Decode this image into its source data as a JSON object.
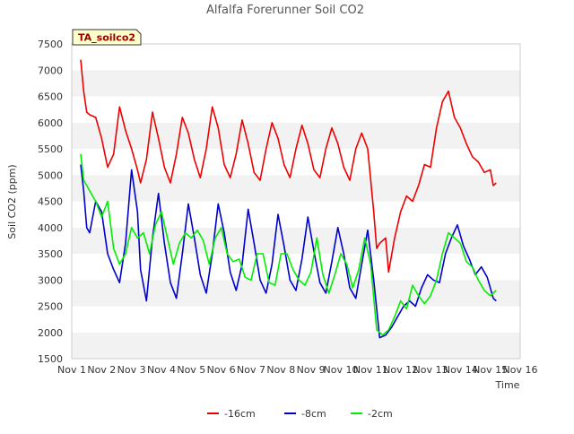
{
  "chart_data": {
    "type": "line",
    "title": "Alfalfa Forerunner Soil CO2",
    "xlabel": "Time",
    "ylabel": "Soil CO2 (ppm)",
    "xlim": [
      1,
      16
    ],
    "ylim": [
      1500,
      7500
    ],
    "x_ticks": [
      1,
      2,
      3,
      4,
      5,
      6,
      7,
      8,
      9,
      10,
      11,
      12,
      13,
      14,
      15,
      16
    ],
    "x_tick_labels": [
      "Nov 1",
      "Nov 2",
      "Nov 3",
      "Nov 4",
      "Nov 5",
      "Nov 6",
      "Nov 7",
      "Nov 8",
      "Nov 9",
      "Nov 10",
      "Nov 11",
      "Nov 12",
      "Nov 13",
      "Nov 14",
      "Nov 15",
      "Nov 16"
    ],
    "y_ticks": [
      1500,
      2000,
      2500,
      3000,
      3500,
      4000,
      4500,
      5000,
      5500,
      6000,
      6500,
      7000,
      7500
    ],
    "y_tick_labels": [
      "1500",
      "2000",
      "2500",
      "3000",
      "3500",
      "4000",
      "4500",
      "5000",
      "5500",
      "6000",
      "6500",
      "7000",
      "7500"
    ],
    "grid": "horizontal bands",
    "legend_position": "bottom-center",
    "site_label": "TA_soilco2",
    "series": [
      {
        "name": "-16cm",
        "color": "#ee0000",
        "x": [
          1.3,
          1.4,
          1.5,
          1.6,
          1.8,
          2.0,
          2.2,
          2.4,
          2.6,
          2.8,
          3.0,
          3.2,
          3.3,
          3.5,
          3.7,
          3.9,
          4.1,
          4.3,
          4.5,
          4.7,
          4.9,
          5.1,
          5.3,
          5.5,
          5.7,
          5.9,
          6.1,
          6.3,
          6.5,
          6.7,
          6.9,
          7.1,
          7.3,
          7.5,
          7.7,
          7.9,
          8.1,
          8.3,
          8.5,
          8.7,
          8.9,
          9.1,
          9.3,
          9.5,
          9.7,
          9.9,
          10.1,
          10.3,
          10.5,
          10.7,
          10.9,
          11.1,
          11.2,
          11.3,
          11.5,
          11.6,
          11.8,
          12.0,
          12.2,
          12.4,
          12.6,
          12.8,
          13.0,
          13.2,
          13.4,
          13.6,
          13.8,
          14.0,
          14.2,
          14.4,
          14.6,
          14.8,
          15.0,
          15.1,
          15.2
        ],
        "y": [
          7200,
          6600,
          6200,
          6150,
          6100,
          5700,
          5150,
          5400,
          6300,
          5850,
          5500,
          5100,
          4850,
          5300,
          6200,
          5700,
          5150,
          4850,
          5400,
          6100,
          5800,
          5300,
          4950,
          5500,
          6300,
          5900,
          5200,
          4950,
          5400,
          6050,
          5600,
          5050,
          4900,
          5500,
          6000,
          5700,
          5200,
          4950,
          5500,
          5950,
          5600,
          5100,
          4950,
          5500,
          5900,
          5600,
          5150,
          4900,
          5500,
          5800,
          5500,
          4300,
          3600,
          3700,
          3800,
          3150,
          3800,
          4300,
          4600,
          4500,
          4800,
          5200,
          5150,
          5900,
          6400,
          6600,
          6100,
          5900,
          5600,
          5350,
          5250,
          5050,
          5100,
          4800,
          4850
        ]
      },
      {
        "name": "-8cm",
        "color": "#0000cc",
        "x": [
          1.3,
          1.4,
          1.5,
          1.6,
          1.8,
          2.0,
          2.2,
          2.4,
          2.6,
          2.8,
          3.0,
          3.2,
          3.3,
          3.5,
          3.7,
          3.9,
          4.1,
          4.3,
          4.5,
          4.7,
          4.9,
          5.1,
          5.3,
          5.5,
          5.7,
          5.9,
          6.1,
          6.3,
          6.5,
          6.7,
          6.9,
          7.1,
          7.3,
          7.5,
          7.7,
          7.9,
          8.1,
          8.3,
          8.5,
          8.7,
          8.9,
          9.1,
          9.3,
          9.5,
          9.7,
          9.9,
          10.1,
          10.3,
          10.5,
          10.7,
          10.9,
          11.1,
          11.3,
          11.5,
          11.7,
          11.9,
          12.1,
          12.3,
          12.5,
          12.7,
          12.9,
          13.1,
          13.3,
          13.5,
          13.7,
          13.9,
          14.1,
          14.3,
          14.5,
          14.7,
          14.9,
          15.1,
          15.2
        ],
        "y": [
          5200,
          4700,
          4000,
          3900,
          4500,
          4300,
          3500,
          3200,
          2950,
          3700,
          5100,
          4300,
          3200,
          2600,
          3800,
          4650,
          3700,
          2950,
          2650,
          3500,
          4450,
          3800,
          3100,
          2750,
          3500,
          4450,
          3900,
          3150,
          2800,
          3300,
          4350,
          3700,
          3000,
          2750,
          3300,
          4250,
          3650,
          3000,
          2800,
          3400,
          4200,
          3550,
          2950,
          2750,
          3350,
          4000,
          3500,
          2850,
          2650,
          3300,
          3950,
          3000,
          1900,
          1950,
          2100,
          2300,
          2500,
          2600,
          2500,
          2850,
          3100,
          3000,
          2950,
          3500,
          3800,
          4050,
          3650,
          3400,
          3100,
          3250,
          3050,
          2650,
          2600
        ]
      },
      {
        "name": "-2cm",
        "color": "#00ee00",
        "x": [
          1.3,
          1.4,
          1.5,
          1.6,
          1.8,
          2.0,
          2.2,
          2.4,
          2.6,
          2.8,
          3.0,
          3.2,
          3.4,
          3.6,
          3.8,
          4.0,
          4.2,
          4.4,
          4.6,
          4.8,
          5.0,
          5.2,
          5.4,
          5.6,
          5.8,
          6.0,
          6.2,
          6.4,
          6.6,
          6.8,
          7.0,
          7.2,
          7.4,
          7.6,
          7.8,
          8.0,
          8.2,
          8.4,
          8.6,
          8.8,
          9.0,
          9.2,
          9.4,
          9.6,
          9.8,
          10.0,
          10.2,
          10.4,
          10.6,
          10.8,
          11.0,
          11.2,
          11.4,
          11.6,
          11.8,
          12.0,
          12.2,
          12.4,
          12.6,
          12.8,
          13.0,
          13.2,
          13.4,
          13.6,
          13.8,
          14.0,
          14.2,
          14.4,
          14.6,
          14.8,
          15.0,
          15.1,
          15.2
        ],
        "y": [
          5400,
          4900,
          4800,
          4700,
          4500,
          4200,
          4500,
          3600,
          3300,
          3500,
          4000,
          3800,
          3900,
          3500,
          4050,
          4300,
          3800,
          3300,
          3700,
          3900,
          3800,
          3950,
          3750,
          3300,
          3800,
          4000,
          3500,
          3350,
          3400,
          3050,
          3000,
          3500,
          3500,
          2950,
          2900,
          3500,
          3500,
          3200,
          3000,
          2900,
          3150,
          3800,
          3100,
          2750,
          3100,
          3500,
          3300,
          2850,
          3200,
          3800,
          3300,
          2050,
          1950,
          2050,
          2300,
          2600,
          2450,
          2900,
          2700,
          2550,
          2700,
          3000,
          3500,
          3900,
          3800,
          3700,
          3350,
          3250,
          3000,
          2800,
          2700,
          2750,
          2800
        ]
      }
    ]
  }
}
